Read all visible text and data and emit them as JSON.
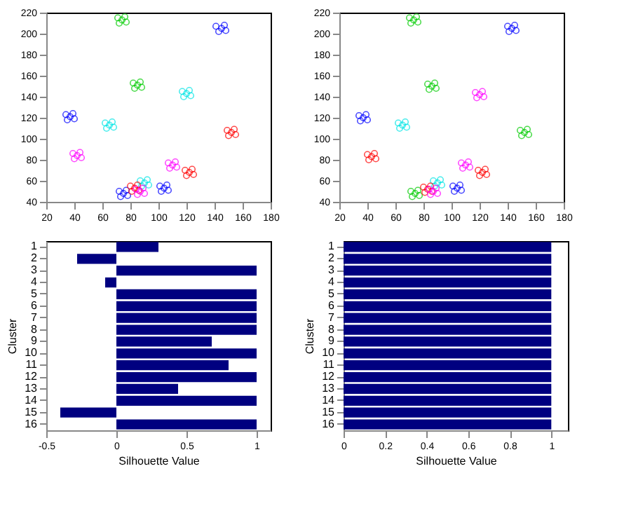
{
  "chart_data": [
    {
      "type": "scatter",
      "marker": "circle",
      "xlim": [
        20,
        180
      ],
      "ylim": [
        40,
        220
      ],
      "xticks": [
        20,
        40,
        60,
        80,
        100,
        120,
        140,
        160,
        180
      ],
      "yticks": [
        40,
        60,
        80,
        100,
        120,
        140,
        160,
        180,
        200,
        220
      ],
      "series": [
        {
          "color": "#0000ff",
          "x": [
            145,
            141,
            148,
            147,
            143,
            37,
            34,
            40,
            39,
            35,
            75,
            72,
            78,
            77,
            73,
            104,
            101,
            107,
            106,
            102
          ],
          "values": [
            205,
            207,
            203,
            208,
            202,
            121,
            123,
            119,
            124,
            118,
            48,
            50,
            46,
            51,
            45,
            53,
            55,
            51,
            56,
            50
          ]
        },
        {
          "color": "#00cc00",
          "x": [
            74,
            71,
            77,
            76,
            72,
            85,
            82,
            88,
            87,
            83
          ],
          "values": [
            213,
            215,
            211,
            216,
            210,
            151,
            153,
            149,
            154,
            148
          ]
        },
        {
          "color": "#00e5e5",
          "x": [
            65,
            62,
            68,
            67,
            63,
            120,
            117,
            123,
            122,
            118,
            90,
            87,
            93,
            92,
            88
          ],
          "values": [
            113,
            115,
            111,
            116,
            110,
            143,
            145,
            141,
            146,
            140,
            58,
            60,
            56,
            61,
            55
          ]
        },
        {
          "color": "#ff0000",
          "x": [
            152,
            149,
            155,
            154,
            150,
            83,
            80,
            86,
            85,
            81,
            122,
            119,
            125,
            124,
            120
          ],
          "values": [
            106,
            108,
            104,
            109,
            103,
            53,
            55,
            51,
            56,
            50,
            68,
            70,
            66,
            71,
            65
          ]
        },
        {
          "color": "#ff00ff",
          "x": [
            42,
            39,
            45,
            44,
            40,
            110,
            107,
            113,
            112,
            108,
            87,
            84,
            90,
            89,
            85
          ],
          "values": [
            84,
            86,
            82,
            87,
            81,
            75,
            77,
            73,
            78,
            72,
            50,
            52,
            48,
            53,
            47
          ]
        }
      ]
    },
    {
      "type": "scatter",
      "marker": "circle",
      "xlim": [
        20,
        180
      ],
      "ylim": [
        40,
        220
      ],
      "xticks": [
        20,
        40,
        60,
        80,
        100,
        120,
        140,
        160,
        180
      ],
      "yticks": [
        40,
        60,
        80,
        100,
        120,
        140,
        160,
        180,
        200,
        220
      ],
      "series": [
        {
          "color": "#0000ff",
          "x": [
            143,
            140,
            146,
            145,
            141,
            37,
            34,
            40,
            39,
            35,
            104,
            101,
            107,
            106,
            102
          ],
          "values": [
            205,
            207,
            203,
            208,
            202,
            120,
            122,
            118,
            123,
            117,
            53,
            55,
            51,
            56,
            50
          ]
        },
        {
          "color": "#00cc00",
          "x": [
            73,
            70,
            76,
            75,
            71,
            86,
            83,
            89,
            88,
            84,
            152,
            149,
            155,
            154,
            150,
            74,
            71,
            77,
            76,
            72
          ],
          "values": [
            213,
            215,
            211,
            216,
            210,
            150,
            152,
            148,
            153,
            147,
            106,
            108,
            104,
            109,
            103,
            48,
            50,
            46,
            51,
            45
          ]
        },
        {
          "color": "#00e5e5",
          "x": [
            65,
            62,
            68,
            67,
            63,
            90,
            87,
            93,
            92,
            88
          ],
          "values": [
            113,
            115,
            111,
            116,
            110,
            58,
            60,
            56,
            61,
            55
          ]
        },
        {
          "color": "#ff0000",
          "x": [
            43,
            40,
            46,
            45,
            41,
            122,
            119,
            125,
            124,
            120,
            83,
            80,
            86,
            85,
            81
          ],
          "values": [
            83,
            85,
            81,
            86,
            80,
            68,
            70,
            66,
            71,
            65,
            52,
            54,
            50,
            55,
            49
          ]
        },
        {
          "color": "#ff00ff",
          "x": [
            120,
            117,
            123,
            122,
            118,
            110,
            107,
            113,
            112,
            108,
            87,
            84,
            90,
            89,
            85
          ],
          "values": [
            142,
            144,
            140,
            145,
            139,
            75,
            77,
            73,
            78,
            72,
            50,
            52,
            48,
            53,
            47
          ]
        }
      ]
    },
    {
      "type": "bar",
      "orientation": "horizontal",
      "xlabel": "Silhouette Value",
      "ylabel": "Cluster",
      "categories": [
        "1",
        "2",
        "3",
        "4",
        "5",
        "6",
        "7",
        "8",
        "9",
        "10",
        "11",
        "12",
        "13",
        "14",
        "15",
        "16"
      ],
      "values": [
        0.3,
        -0.28,
        1,
        -0.08,
        1,
        1,
        1,
        1,
        0.68,
        1,
        0.8,
        1,
        0.44,
        1,
        -0.4,
        1
      ],
      "color": "#000080",
      "xlim": [
        -0.5,
        1.1
      ],
      "xticks": [
        -0.5,
        0,
        0.5,
        1
      ]
    },
    {
      "type": "bar",
      "orientation": "horizontal",
      "xlabel": "Silhouette Value",
      "ylabel": "Cluster",
      "categories": [
        "1",
        "2",
        "3",
        "4",
        "5",
        "6",
        "7",
        "8",
        "9",
        "10",
        "11",
        "12",
        "13",
        "14",
        "15",
        "16"
      ],
      "values": [
        1,
        1,
        1,
        1,
        1,
        1,
        1,
        1,
        1,
        1,
        1,
        1,
        1,
        1,
        1,
        1
      ],
      "color": "#000080",
      "xlim": [
        0,
        1.08
      ],
      "xticks": [
        0,
        0.2,
        0.4,
        0.6,
        0.8,
        1
      ]
    }
  ]
}
